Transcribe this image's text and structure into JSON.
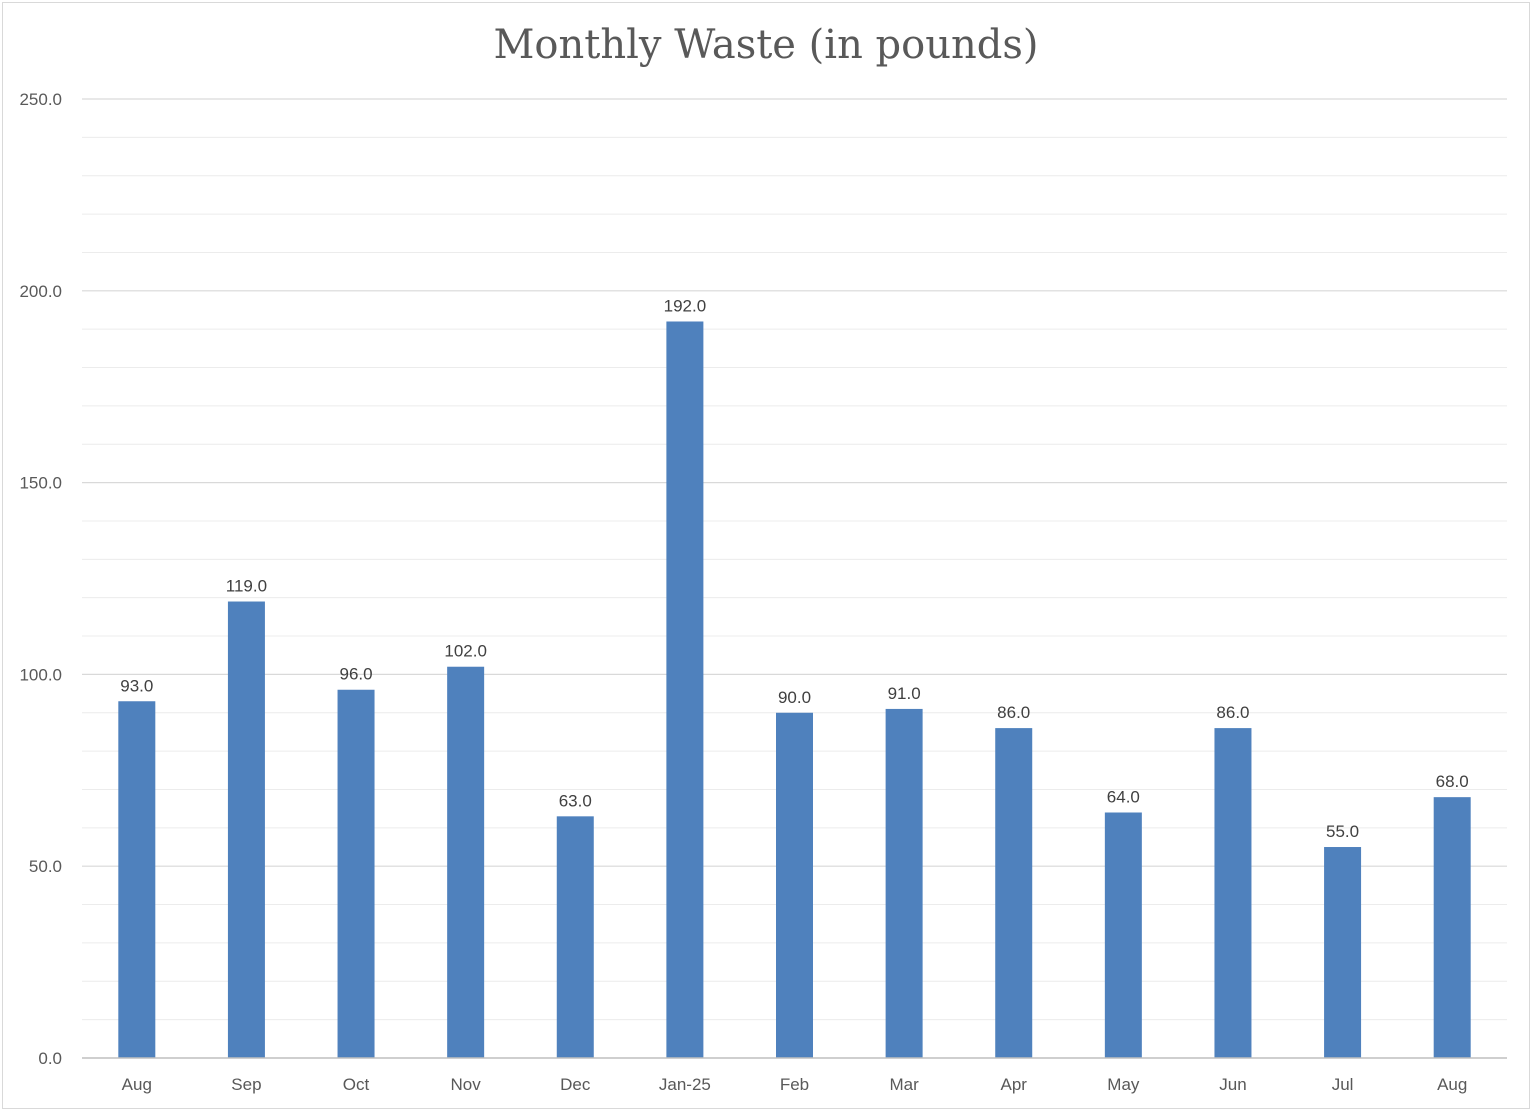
{
  "chart_data": {
    "type": "bar",
    "title": "Monthly Waste (in pounds)",
    "xlabel": "",
    "ylabel": "",
    "categories": [
      "Aug",
      "Sep",
      "Oct",
      "Nov",
      "Dec",
      "Jan-25",
      "Feb",
      "Mar",
      "Apr",
      "May",
      "Jun",
      "Jul",
      "Aug"
    ],
    "values": [
      93.0,
      119.0,
      96.0,
      102.0,
      63.0,
      192.0,
      90.0,
      91.0,
      86.0,
      64.0,
      86.0,
      55.0,
      68.0
    ],
    "data_labels": [
      "93.0",
      "119.0",
      "96.0",
      "102.0",
      "63.0",
      "192.0",
      "90.0",
      "91.0",
      "86.0",
      "64.0",
      "86.0",
      "55.0",
      "68.0"
    ],
    "ylim": [
      0,
      250
    ],
    "y_ticks": [
      0,
      50,
      100,
      150,
      200,
      250
    ],
    "y_tick_labels": [
      "0.0",
      "50.0",
      "100.0",
      "150.0",
      "200.0",
      "250.0"
    ],
    "minor_gridlines": true,
    "grid": true,
    "legend": "none",
    "colors": {
      "bar": "#4f81bd",
      "major_grid": "#d9d9d9",
      "minor_grid": "#ececec",
      "axis": "#bfbfbf"
    }
  }
}
